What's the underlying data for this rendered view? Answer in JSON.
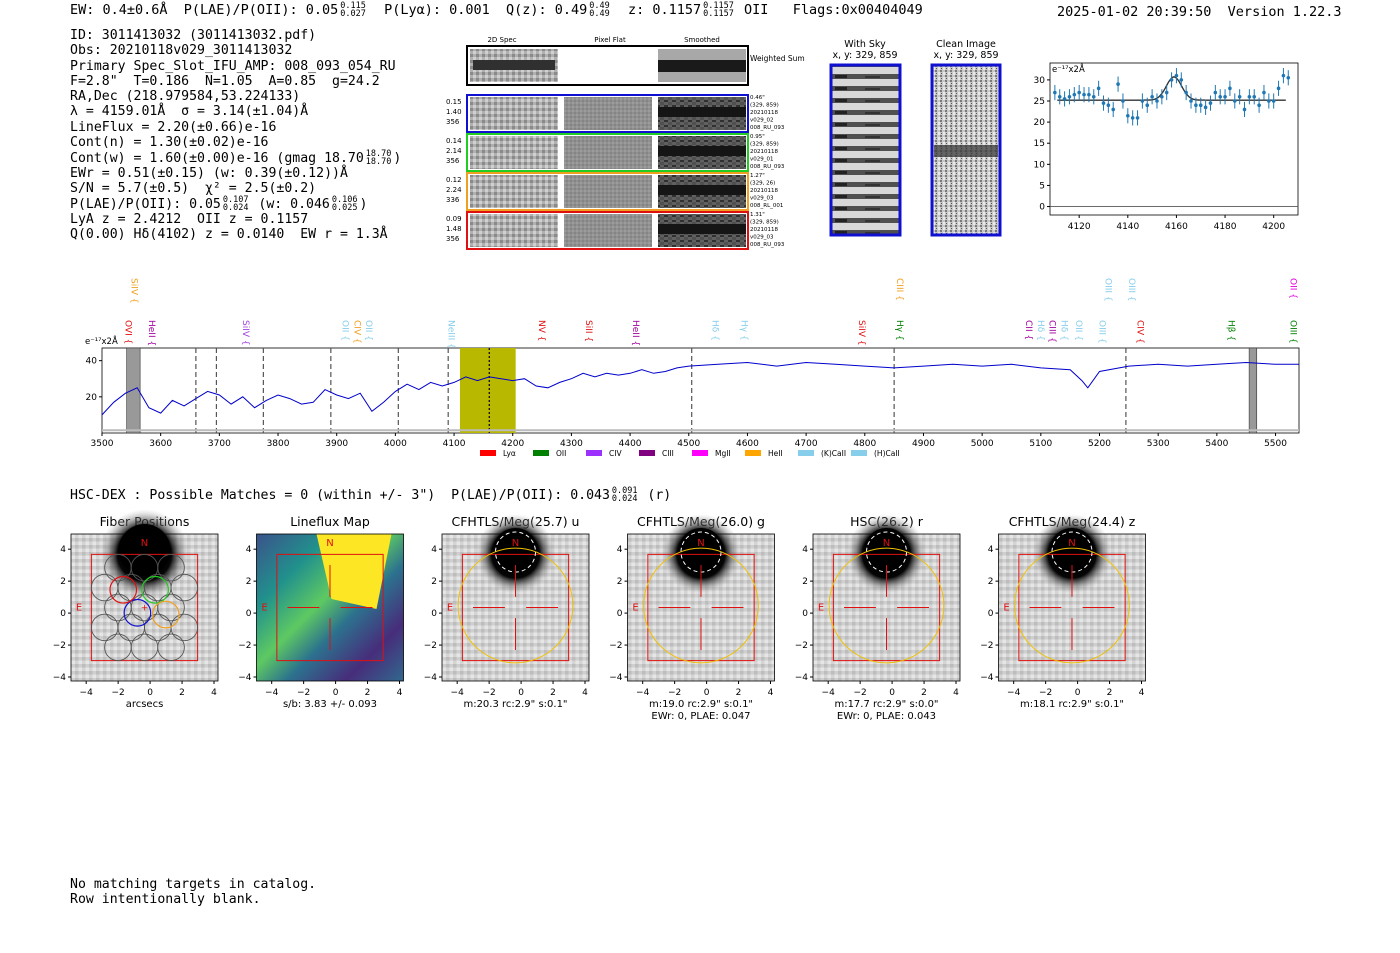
{
  "header": {
    "line": "EW: 0.4±0.6Å  P(LAE)/P(OII): 0.05",
    "plae_hi": "0.115",
    "plae_lo": "0.027",
    "p_lya": "  P(Lyα): 0.001  Q(z): 0.49",
    "qz_hi": "0.49",
    "qz_lo": "0.49",
    "z_txt": "  z: 0.1157",
    "z_hi": "0.1157",
    "z_lo": "0.1157",
    "oii_flags": " OII   Flags:0x00404049",
    "datetime": "2025-01-02 20:39:50  Version 1.22.3"
  },
  "info": {
    "l1": "ID: 3011413032 (3011413032.pdf)",
    "l2": "Obs: 20210118v029_3011413032",
    "l3": "Primary Spec_Slot_IFU_AMP: 008_093_054_RU",
    "l4": "F=2.8\"  T=0.186  N=1.05  A=0.85  g=24.2",
    "l5": "RA,Dec (218.979584,53.224133)",
    "l6": "λ = 4159.01Å  σ = 3.14(±1.04)Å",
    "l7": "LineFlux = 2.20(±0.66)e-16",
    "l8": "Cont(n) = 1.30(±0.02)e-16",
    "l9": "Cont(w) = 1.60(±0.00)e-16 (gmag 18.70",
    "l9_hi": "18.70",
    "l9_lo": "18.70",
    "l9_end": ")",
    "l10": "EWr = 0.51(±0.15) (w: 0.39(±0.12))Å",
    "l11": "S/N = 5.7(±0.5)  χ² = 2.5(±0.2)",
    "l12": "P(LAE)/P(OII): 0.05",
    "l12_hi": "0.107",
    "l12_lo": "0.024",
    "l12_mid": " (w: 0.046",
    "l12_hi2": "0.106",
    "l12_lo2": "0.025",
    "l12_end": ")",
    "l13": "LyA z = 2.4212  OII z = 0.1157",
    "l14": "Q(0.00) Hδ(4102) z = 0.0140  EW r = 1.3Å"
  },
  "cutouts": {
    "col_headers": [
      "2D Spec",
      "Pixel Flat",
      "Smoothed"
    ],
    "weighted_sum": "Weighted Sum",
    "rows": [
      {
        "left": [
          "0.15",
          "1.40",
          "356"
        ],
        "right": [
          "0.46\"",
          "(329, 859)",
          "20210118",
          "v029_02",
          "008_RU_093"
        ],
        "color": "#1010d0"
      },
      {
        "left": [
          "0.14",
          "2.14",
          "356"
        ],
        "right": [
          "0.95\"",
          "(329, 859)",
          "20210118",
          "v029_01",
          "008_RU_093"
        ],
        "color": "#22cc22"
      },
      {
        "left": [
          "0.12",
          "2.24",
          "336"
        ],
        "right": [
          "1.27\"",
          "(329, 26)",
          "20210118",
          "v029_03",
          "008_RL_001"
        ],
        "color": "#f0a020"
      },
      {
        "left": [
          "0.09",
          "1.48",
          "356"
        ],
        "right": [
          "1.31\"",
          "(329, 859)",
          "20210118",
          "v029_03",
          "008_RU_093"
        ],
        "color": "#e01010"
      }
    ],
    "with_sky": "With Sky",
    "clean_image": "Clean Image",
    "xy": "x, y: 329, 859"
  },
  "chart_data": [
    {
      "type": "scatter",
      "title": "",
      "unit_label": "e⁻¹⁷x2Å",
      "xlim": [
        4108,
        4210
      ],
      "ylim": [
        -2,
        34
      ],
      "xticks": [
        4120,
        4140,
        4160,
        4180,
        4200
      ],
      "yticks": [
        0,
        5,
        10,
        15,
        20,
        25,
        30
      ],
      "x": [
        4110,
        4112,
        4114,
        4116,
        4118,
        4120,
        4122,
        4124,
        4126,
        4128,
        4130,
        4132,
        4134,
        4136,
        4138,
        4140,
        4142,
        4144,
        4146,
        4148,
        4150,
        4152,
        4154,
        4156,
        4158,
        4160,
        4162,
        4164,
        4166,
        4168,
        4170,
        4172,
        4174,
        4176,
        4178,
        4180,
        4182,
        4184,
        4186,
        4188,
        4190,
        4192,
        4194,
        4196,
        4198,
        4200,
        4202,
        4204,
        4206
      ],
      "y": [
        27,
        26,
        25.5,
        26,
        26.5,
        27,
        26.5,
        26.5,
        26,
        28,
        24.5,
        24,
        23,
        29,
        25,
        21.5,
        21,
        21,
        25,
        24,
        26,
        25,
        26,
        27,
        30,
        31,
        30,
        27,
        25,
        24,
        24,
        23.5,
        24.5,
        27,
        26,
        26,
        28,
        25,
        26,
        23,
        26,
        26,
        24,
        27,
        25,
        25,
        28,
        31,
        30.5
      ],
      "fit": {
        "continuum": 25.2,
        "center": 4159.0,
        "sigma": 3.14,
        "amplitude": 5.5
      }
    },
    {
      "type": "line",
      "title": "",
      "unit_label": "e⁻¹⁷x2Å",
      "xlim": [
        3500,
        5540
      ],
      "ylim": [
        0,
        47
      ],
      "xticks": [
        3500,
        3600,
        3700,
        3800,
        3900,
        4000,
        4100,
        4200,
        4300,
        4400,
        4500,
        4600,
        4700,
        4800,
        4900,
        5000,
        5100,
        5200,
        5300,
        5400,
        5500
      ],
      "yticks": [
        20,
        40
      ],
      "x": [
        3500,
        3520,
        3540,
        3560,
        3580,
        3600,
        3620,
        3640,
        3660,
        3680,
        3700,
        3720,
        3740,
        3760,
        3780,
        3800,
        3820,
        3840,
        3860,
        3880,
        3900,
        3920,
        3940,
        3960,
        3980,
        4000,
        4020,
        4040,
        4060,
        4080,
        4100,
        4120,
        4140,
        4160,
        4180,
        4200,
        4220,
        4240,
        4260,
        4280,
        4300,
        4320,
        4340,
        4360,
        4380,
        4400,
        4420,
        4440,
        4460,
        4480,
        4500,
        4550,
        4600,
        4650,
        4700,
        4750,
        4800,
        4850,
        4900,
        4950,
        5000,
        5050,
        5100,
        5150,
        5170,
        5180,
        5200,
        5250,
        5300,
        5350,
        5400,
        5450,
        5500,
        5540
      ],
      "y": [
        10,
        17,
        22,
        25,
        14,
        11,
        18,
        15,
        19,
        23,
        21,
        16,
        20,
        14,
        18,
        21,
        19,
        16,
        17,
        24,
        21,
        19,
        22,
        12,
        17,
        23,
        27,
        24,
        28,
        26,
        28,
        31,
        29,
        31,
        30,
        29,
        30,
        26,
        25,
        28,
        30,
        33,
        31,
        33,
        32,
        33,
        35,
        33,
        34,
        36,
        37,
        38,
        39,
        37,
        39,
        38,
        37,
        36,
        37,
        38,
        37,
        38,
        36,
        35,
        29,
        25,
        34,
        37,
        38,
        37,
        38,
        39,
        38,
        38
      ],
      "shaded_window": [
        4110,
        4205
      ],
      "dashed_lines": [
        3660,
        3695,
        3775,
        3890,
        4005,
        4090,
        4160,
        4505,
        4850,
        5245
      ],
      "masked_regions": [
        [
          3542,
          3565
        ],
        [
          5455,
          5468
        ]
      ],
      "lines": [
        {
          "name": "OVI",
          "x": 3535,
          "color": "#e01010",
          "row": "low"
        },
        {
          "name": "SiIV",
          "x": 3545,
          "color": "#f0a020",
          "row": "high"
        },
        {
          "name": "HeII",
          "x": 3575,
          "color": "#a000a0",
          "row": "low"
        },
        {
          "name": "SiIV",
          "x": 3735,
          "color": "#a040e0",
          "row": "low"
        },
        {
          "name": "OII",
          "x": 3905,
          "color": "#87ceeb",
          "row": "low"
        },
        {
          "name": "CIV",
          "x": 3925,
          "color": "#f0a020",
          "row": "low"
        },
        {
          "name": "OII",
          "x": 3945,
          "color": "#87ceeb",
          "row": "low"
        },
        {
          "name": "NeIII",
          "x": 4085,
          "color": "#87ceeb",
          "row": "low"
        },
        {
          "name": "NV",
          "x": 4240,
          "color": "#e01010",
          "row": "low"
        },
        {
          "name": "SiII",
          "x": 4320,
          "color": "#e01010",
          "row": "low"
        },
        {
          "name": "HeII",
          "x": 4400,
          "color": "#a000a0",
          "row": "low"
        },
        {
          "name": "Hδ",
          "x": 4535,
          "color": "#87ceeb",
          "row": "low"
        },
        {
          "name": "Hγ",
          "x": 4585,
          "color": "#87ceeb",
          "row": "low"
        },
        {
          "name": "SiIV",
          "x": 4785,
          "color": "#e01010",
          "row": "low"
        },
        {
          "name": "CIII",
          "x": 4850,
          "color": "#f0a020",
          "row": "high"
        },
        {
          "name": "Hγ",
          "x": 4850,
          "color": "#008000",
          "row": "low"
        },
        {
          "name": "CII",
          "x": 5070,
          "color": "#a000a0",
          "row": "low"
        },
        {
          "name": "Hδ",
          "x": 5090,
          "color": "#87ceeb",
          "row": "low"
        },
        {
          "name": "CIII",
          "x": 5110,
          "color": "#a000a0",
          "row": "low"
        },
        {
          "name": "Hδ",
          "x": 5130,
          "color": "#87ceeb",
          "row": "low"
        },
        {
          "name": "OII",
          "x": 5155,
          "color": "#87ceeb",
          "row": "low"
        },
        {
          "name": "OIII",
          "x": 5195,
          "color": "#87ceeb",
          "row": "low"
        },
        {
          "name": "OIII",
          "x": 5205,
          "color": "#87ceeb",
          "row": "high"
        },
        {
          "name": "OIII",
          "x": 5245,
          "color": "#87ceeb",
          "row": "high"
        },
        {
          "name": "CIV",
          "x": 5260,
          "color": "#e01010",
          "row": "low"
        },
        {
          "name": "Hβ",
          "x": 5415,
          "color": "#008000",
          "row": "low"
        },
        {
          "name": "OIII",
          "x": 5520,
          "color": "#008000",
          "row": "low"
        },
        {
          "name": "OII",
          "x": 5520,
          "color": "#e000e0",
          "row": "high"
        }
      ],
      "legend": [
        {
          "name": "Lyα",
          "color": "#ff0000"
        },
        {
          "name": "OII",
          "color": "#008000"
        },
        {
          "name": "CIV",
          "color": "#9b30ff"
        },
        {
          "name": "CIII",
          "color": "#800080"
        },
        {
          "name": "MgII",
          "color": "#ff00ff"
        },
        {
          "name": "HeII",
          "color": "#ffa500"
        },
        {
          "name": "(K)CaII",
          "color": "#87ceeb"
        },
        {
          "name": "(H)CaII",
          "color": "#87ceeb"
        }
      ]
    }
  ],
  "hsc_line": {
    "text": "HSC-DEX : Possible Matches = 0 (within +/- 3\")  P(LAE)/P(OII): 0.043",
    "hi": "0.091",
    "lo": "0.024",
    "end": " (r)"
  },
  "panels": [
    {
      "title": "Fiber Positions",
      "sub1": "arcsecs",
      "sub2": ""
    },
    {
      "title": "Lineflux Map",
      "sub1": "s/b: 3.83 +/- 0.093",
      "sub2": ""
    },
    {
      "title": "CFHTLS/Meg(25.7) u",
      "sub1": "m:20.3 rc:2.9\"  s:0.1\"",
      "sub2": ""
    },
    {
      "title": "CFHTLS/Meg(26.0) g",
      "sub1": "m:19.0 rc:2.9\"  s:0.1\"",
      "sub2": "EWr: 0, PLAE: 0.047"
    },
    {
      "title": "HSC(26.2) r",
      "sub1": "m:17.7 rc:2.9\"  s:0.0\"",
      "sub2": "EWr: 0, PLAE: 0.043"
    },
    {
      "title": "CFHTLS/Meg(24.4) z",
      "sub1": "m:18.1 rc:2.9\"  s:0.1\"",
      "sub2": ""
    }
  ],
  "panel_axes": {
    "xticks": [
      "−4",
      "−2",
      "0",
      "2",
      "4"
    ],
    "yticks": [
      "4",
      "2",
      "0",
      "−2",
      "−4"
    ],
    "north": "N",
    "east": "E"
  },
  "footer": {
    "l1": "No matching targets in catalog.",
    "l2": "Row intentionally blank."
  }
}
